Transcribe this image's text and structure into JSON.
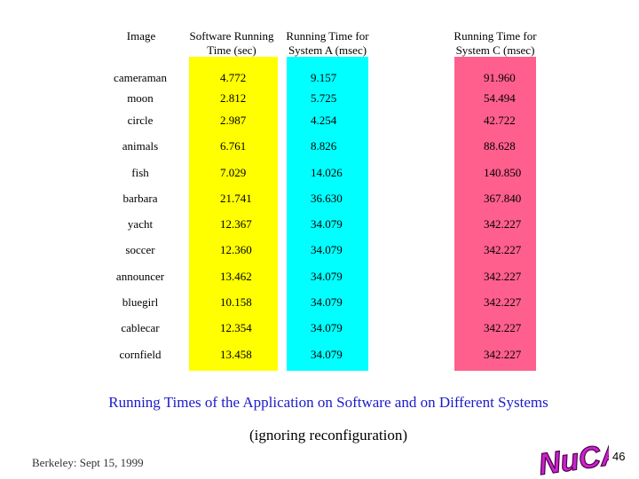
{
  "headers": {
    "image": "Image",
    "software": "Software Running Time (sec)",
    "system_a": "Running Time for System A (msec)",
    "system_c": "Running Time for System C (msec)"
  },
  "rows": [
    {
      "name": "cameraman",
      "software": "4.772",
      "system_a": "9.157",
      "system_c": "91.960"
    },
    {
      "name": "moon",
      "software": "2.812",
      "system_a": "5.725",
      "system_c": "54.494"
    },
    {
      "name": "circle",
      "software": "2.987",
      "system_a": "4.254",
      "system_c": "42.722"
    },
    {
      "name": "animals",
      "software": "6.761",
      "system_a": "8.826",
      "system_c": "88.628"
    },
    {
      "name": "fish",
      "software": "7.029",
      "system_a": "14.026",
      "system_c": "140.850"
    },
    {
      "name": "barbara",
      "software": "21.741",
      "system_a": "36.630",
      "system_c": "367.840"
    },
    {
      "name": "yacht",
      "software": "12.367",
      "system_a": "34.079",
      "system_c": "342.227"
    },
    {
      "name": "soccer",
      "software": "12.360",
      "system_a": "34.079",
      "system_c": "342.227"
    },
    {
      "name": "announcer",
      "software": "13.462",
      "system_a": "34.079",
      "system_c": "342.227"
    },
    {
      "name": "bluegirl",
      "software": "10.158",
      "system_a": "34.079",
      "system_c": "342.227"
    },
    {
      "name": "cablecar",
      "software": "12.354",
      "system_a": "34.079",
      "system_c": "342.227"
    },
    {
      "name": "cornfield",
      "software": "13.458",
      "system_a": "34.079",
      "system_c": "342.227"
    }
  ],
  "caption": "Running Times of the Application on Software and on Different Systems",
  "subcaption": "(ignoring reconfiguration)",
  "footer": {
    "left": "Berkeley: Sept 15, 1999",
    "logo": "NuCAD",
    "page_number": "46"
  },
  "colors": {
    "software_band": "#ffff00",
    "system_a_band": "#00ffff",
    "system_c_band": "#ff5f8c",
    "caption_text": "#1a1acc",
    "logo_fill": "#cc22cc"
  }
}
